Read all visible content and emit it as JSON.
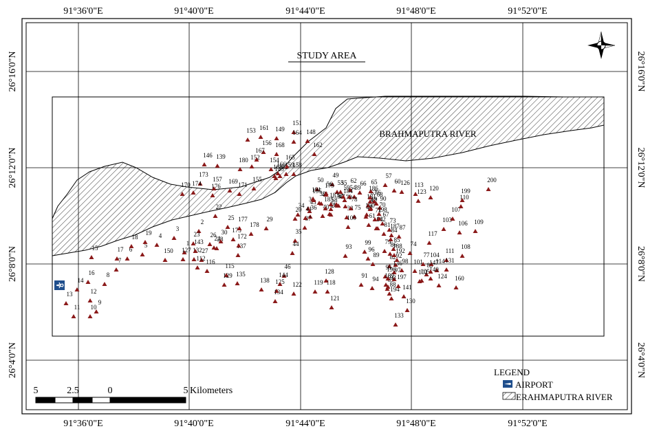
{
  "title": "STUDY AREA",
  "river_label": "BRAHMAPUTRA  RIVER",
  "longitude_labels": [
    "91°36'0\"E",
    "91°40'0\"E",
    "91°44'0\"E",
    "91°48'0\"E",
    "91°52'0\"E"
  ],
  "latitude_labels": [
    "26°16'0\"N",
    "26°12'0\"N",
    "26°8'0\"N",
    "26°4'0\"N"
  ],
  "scale_bar": {
    "ticks": [
      "5",
      "2.5",
      "0",
      "5"
    ],
    "unit": "Kilometers"
  },
  "legend": {
    "title": "LEGEND",
    "items": [
      {
        "label": "AIRPORT",
        "symbol": "airport-icon",
        "color": "#1f4e8c"
      },
      {
        "label": "ERAHMAPUTRA RIVER",
        "symbol": "hatch-pattern"
      }
    ]
  },
  "north_arrow": "compass-rose-icon",
  "marker_color": "#8b1a1a",
  "sample_points": [
    "1",
    "2",
    "3",
    "4",
    "5",
    "6",
    "7",
    "8",
    "9",
    "10",
    "11",
    "12",
    "13",
    "14",
    "15",
    "16",
    "17",
    "18",
    "19",
    "20",
    "21",
    "22",
    "23",
    "24",
    "25",
    "26",
    "27",
    "28",
    "29",
    "30",
    "31",
    "32",
    "33",
    "34",
    "35",
    "36",
    "37",
    "38",
    "39",
    "40",
    "41",
    "42",
    "43",
    "44",
    "45",
    "46",
    "47",
    "48",
    "49",
    "50",
    "51",
    "52",
    "53",
    "54",
    "55",
    "56",
    "57",
    "58",
    "59",
    "60",
    "61",
    "62",
    "63",
    "64",
    "65",
    "66",
    "67",
    "68",
    "69",
    "70",
    "71",
    "72",
    "73",
    "74",
    "75",
    "76",
    "77",
    "78",
    "79",
    "80",
    "81",
    "82",
    "83",
    "84",
    "85",
    "86",
    "87",
    "88",
    "89",
    "90",
    "91",
    "92",
    "93",
    "94",
    "95",
    "96",
    "97",
    "98",
    "99",
    "100",
    "101",
    "102",
    "103",
    "104",
    "105",
    "106",
    "107",
    "108",
    "109",
    "110",
    "111",
    "112",
    "113",
    "114",
    "115",
    "116",
    "117",
    "118",
    "119",
    "120",
    "121",
    "122",
    "123",
    "124",
    "125",
    "126",
    "127",
    "128",
    "129",
    "130",
    "131",
    "132",
    "133",
    "134",
    "135",
    "136",
    "137",
    "138",
    "139",
    "140",
    "141",
    "142",
    "143",
    "144",
    "145",
    "146",
    "147",
    "148",
    "149",
    "150",
    "151",
    "152",
    "153",
    "154",
    "155",
    "156",
    "157",
    "158",
    "159",
    "160",
    "161",
    "162",
    "163",
    "164",
    "165",
    "166",
    "167",
    "168",
    "169",
    "170",
    "171",
    "172",
    "173",
    "174",
    "175",
    "176",
    "177",
    "178",
    "179",
    "180",
    "181",
    "182",
    "183",
    "184",
    "185",
    "186",
    "187",
    "188",
    "189",
    "190",
    "191",
    "192",
    "193",
    "194",
    "195",
    "196",
    "197",
    "198",
    "199",
    "200"
  ]
}
